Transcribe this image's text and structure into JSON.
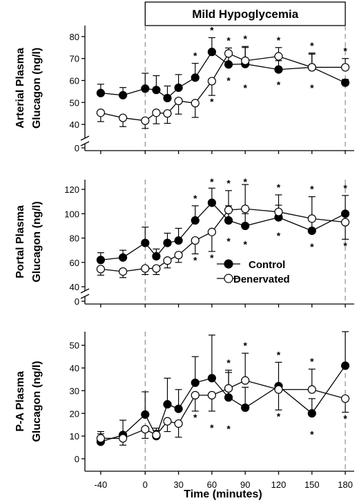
{
  "chart_data": {
    "type": "line",
    "banner": "Mild Hypoglycemia",
    "banner_x_range": [
      0,
      180
    ],
    "xlabel": "Time (minutes)",
    "x_ticks": [
      -40,
      0,
      30,
      60,
      90,
      120,
      150,
      180
    ],
    "x_tick_labels": [
      "-40",
      "0",
      "30",
      "60",
      "90",
      "120",
      "150",
      "180"
    ],
    "xlim": [
      -48,
      188
    ],
    "event_lines_x": [
      0,
      180
    ],
    "legend": {
      "entries": [
        "Control",
        "Denervated"
      ],
      "placement": "middle panel, lower center"
    },
    "panels": [
      {
        "ylabel_lines": [
          "Arterial Plasma",
          "Glucagon (ng/l)"
        ],
        "y_ticks": [
          40,
          50,
          60,
          70,
          80
        ],
        "zero_label": "0",
        "ylim": [
          35,
          85
        ],
        "series": [
          {
            "name": "Control",
            "marker": "filled",
            "x": [
              -40,
              -20,
              0,
              10,
              20,
              30,
              45,
              60,
              75,
              90,
              120,
              150,
              180
            ],
            "y": [
              54.3,
              53.3,
              56.3,
              55.7,
              52.0,
              56.7,
              61.3,
              73.0,
              67.3,
              67.5,
              65.0,
              66.0,
              59.0
            ],
            "error": [
              4.0,
              3.5,
              7.0,
              6.5,
              5.5,
              6.0,
              6.5,
              6.5,
              4.5,
              8.0,
              4.0,
              6.5,
              1.5
            ]
          },
          {
            "name": "Denervated",
            "marker": "open",
            "x": [
              -40,
              -20,
              0,
              10,
              20,
              30,
              45,
              60,
              75,
              90,
              120,
              150,
              180
            ],
            "y": [
              45.3,
              43.0,
              41.7,
              45.3,
              45.0,
              50.7,
              49.7,
              59.7,
              72.3,
              69.0,
              71.0,
              66.0,
              66.0
            ],
            "error": [
              4.0,
              4.0,
              3.5,
              5.0,
              4.5,
              6.0,
              6.5,
              6.5,
              2.5,
              6.0,
              4.0,
              6.0,
              4.0
            ]
          }
        ],
        "significance_markers": [
          {
            "x": 45,
            "position": "above"
          },
          {
            "x": 60,
            "position": "above"
          },
          {
            "x": 60,
            "position": "below"
          },
          {
            "x": 75,
            "position": "above"
          },
          {
            "x": 75,
            "position": "below"
          },
          {
            "x": 90,
            "position": "above"
          },
          {
            "x": 90,
            "position": "below"
          },
          {
            "x": 120,
            "position": "above"
          },
          {
            "x": 120,
            "position": "below"
          },
          {
            "x": 150,
            "position": "above"
          },
          {
            "x": 150,
            "position": "below"
          },
          {
            "x": 180,
            "position": "above"
          }
        ]
      },
      {
        "ylabel_lines": [
          "Portal Plasma",
          "Glucagon (ng/l)"
        ],
        "y_ticks": [
          40,
          60,
          80,
          100,
          120
        ],
        "zero_label": "0",
        "ylim": [
          40,
          128
        ],
        "series": [
          {
            "name": "Control",
            "marker": "filled",
            "x": [
              -40,
              -20,
              0,
              10,
              20,
              30,
              45,
              60,
              75,
              90,
              120,
              150,
              180
            ],
            "y": [
              62,
              64,
              76,
              65,
              76,
              78,
              94.5,
              109,
              94.5,
              90,
              97,
              86,
              100
            ],
            "error": [
              6,
              6,
              13,
              6,
              8,
              10,
              12,
              12,
              12,
              10,
              10,
              8,
              15
            ]
          },
          {
            "name": "Denervated",
            "marker": "open",
            "x": [
              -40,
              -20,
              0,
              10,
              20,
              30,
              45,
              60,
              75,
              90,
              120,
              150,
              180
            ],
            "y": [
              54.5,
              52.5,
              55,
              55,
              61.5,
              66,
              78,
              85,
              103,
              104,
              101.5,
              96,
              93
            ],
            "error": [
              5,
              5,
              5,
              5,
              6,
              6,
              11,
              16,
              16,
              20,
              14,
              18,
              14
            ]
          }
        ],
        "significance_markers": [
          {
            "x": 45,
            "position": "above"
          },
          {
            "x": 45,
            "position": "below"
          },
          {
            "x": 60,
            "position": "above"
          },
          {
            "x": 60,
            "position": "below"
          },
          {
            "x": 75,
            "position": "above"
          },
          {
            "x": 75,
            "position": "below"
          },
          {
            "x": 90,
            "position": "above"
          },
          {
            "x": 90,
            "position": "below"
          },
          {
            "x": 120,
            "position": "above"
          },
          {
            "x": 120,
            "position": "below"
          },
          {
            "x": 150,
            "position": "above"
          },
          {
            "x": 150,
            "position": "below"
          },
          {
            "x": 180,
            "position": "above"
          },
          {
            "x": 180,
            "position": "below"
          }
        ]
      },
      {
        "ylabel_lines": [
          "P-A Plasma",
          "Glucagon (ng/l)"
        ],
        "y_ticks": [
          0,
          10,
          20,
          30,
          40,
          50
        ],
        "ylim": [
          0,
          56
        ],
        "series": [
          {
            "name": "Control",
            "marker": "filled",
            "x": [
              -40,
              -20,
              0,
              10,
              20,
              30,
              45,
              60,
              75,
              90,
              120,
              150,
              180
            ],
            "y": [
              7.5,
              10.5,
              19.5,
              10,
              24,
              22,
              33.5,
              35.5,
              27,
              22.5,
              32,
              20,
              41
            ],
            "error": [
              3.5,
              6.5,
              10,
              2.5,
              11.5,
              8.5,
              11.5,
              19,
              11,
              9,
              10.5,
              6.5,
              15
            ]
          },
          {
            "name": "Denervated",
            "marker": "open",
            "x": [
              -40,
              -20,
              0,
              10,
              20,
              30,
              45,
              60,
              75,
              90,
              120,
              150,
              180
            ],
            "y": [
              9,
              9,
              13,
              10.5,
              16.5,
              15.5,
              28,
              28,
              31,
              34.5,
              30.5,
              30.5,
              26.5
            ],
            "error": [
              3,
              3,
              4,
              3,
              4.5,
              6,
              7,
              7,
              8,
              12,
              9,
              9,
              6
            ]
          }
        ],
        "significance_markers": [
          {
            "x": 45,
            "position": "below"
          },
          {
            "x": 60,
            "position": "below"
          },
          {
            "x": 75,
            "position": "above"
          },
          {
            "x": 75,
            "position": "below"
          },
          {
            "x": 90,
            "position": "above"
          },
          {
            "x": 120,
            "position": "above"
          },
          {
            "x": 120,
            "position": "below"
          },
          {
            "x": 150,
            "position": "above"
          },
          {
            "x": 150,
            "position": "below"
          },
          {
            "x": 180,
            "position": "below"
          }
        ]
      }
    ]
  }
}
